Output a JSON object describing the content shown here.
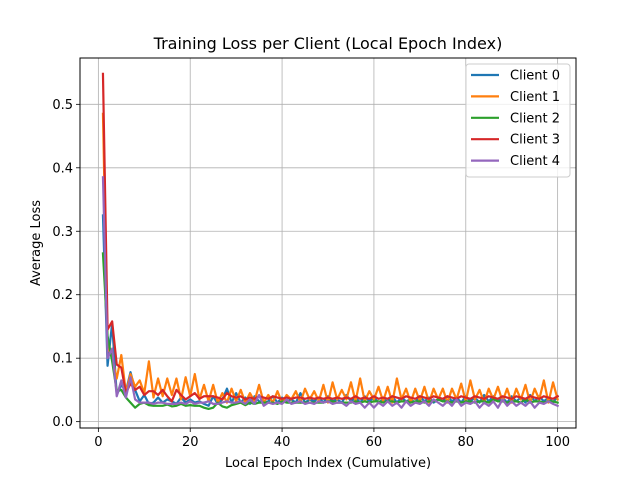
{
  "chart_data": {
    "type": "line",
    "title": "Training Loss per Client (Local Epoch Index)",
    "xlabel": "Local Epoch Index (Cumulative)",
    "ylabel": "Average Loss",
    "xlim": [
      -4,
      104
    ],
    "ylim": [
      -0.01,
      0.573
    ],
    "xticks": [
      0,
      20,
      40,
      60,
      80,
      100
    ],
    "yticks": [
      0.0,
      0.1,
      0.2,
      0.3,
      0.4,
      0.5
    ],
    "xtick_labels": [
      "0",
      "20",
      "40",
      "60",
      "80",
      "100"
    ],
    "ytick_labels": [
      "0.0",
      "0.1",
      "0.2",
      "0.3",
      "0.4",
      "0.5"
    ],
    "grid": true,
    "legend_position": "top-right",
    "series": [
      {
        "name": "Client 0",
        "color": "#1f77b4",
        "x": [
          1,
          2,
          3,
          4,
          5,
          6,
          7,
          8,
          9,
          10,
          11,
          12,
          13,
          14,
          15,
          16,
          17,
          18,
          19,
          20,
          21,
          22,
          23,
          24,
          25,
          26,
          27,
          28,
          29,
          30,
          31,
          32,
          33,
          34,
          35,
          36,
          37,
          38,
          39,
          40,
          41,
          42,
          43,
          44,
          45,
          46,
          47,
          48,
          49,
          50,
          51,
          52,
          53,
          54,
          55,
          56,
          57,
          58,
          59,
          60,
          61,
          62,
          63,
          64,
          65,
          66,
          67,
          68,
          69,
          70,
          71,
          72,
          73,
          74,
          75,
          76,
          77,
          78,
          79,
          80,
          81,
          82,
          83,
          84,
          85,
          86,
          87,
          88,
          89,
          90,
          91,
          92,
          93,
          94,
          95,
          96,
          97,
          98,
          99,
          100
        ],
        "values": [
          0.325,
          0.088,
          0.155,
          0.042,
          0.058,
          0.048,
          0.078,
          0.05,
          0.032,
          0.042,
          0.028,
          0.03,
          0.038,
          0.03,
          0.035,
          0.032,
          0.028,
          0.038,
          0.03,
          0.035,
          0.03,
          0.032,
          0.028,
          0.025,
          0.04,
          0.028,
          0.035,
          0.052,
          0.03,
          0.045,
          0.03,
          0.038,
          0.028,
          0.04,
          0.032,
          0.03,
          0.032,
          0.04,
          0.03,
          0.038,
          0.032,
          0.035,
          0.03,
          0.045,
          0.03,
          0.035,
          0.032,
          0.038,
          0.03,
          0.04,
          0.032,
          0.035,
          0.03,
          0.042,
          0.032,
          0.038,
          0.03,
          0.04,
          0.032,
          0.038,
          0.03,
          0.035,
          0.032,
          0.04,
          0.03,
          0.038,
          0.032,
          0.035,
          0.03,
          0.04,
          0.032,
          0.038,
          0.03,
          0.035,
          0.032,
          0.04,
          0.032,
          0.038,
          0.03,
          0.04,
          0.032,
          0.038,
          0.03,
          0.042,
          0.032,
          0.04,
          0.032,
          0.038,
          0.03,
          0.04,
          0.032,
          0.038,
          0.03,
          0.042,
          0.032,
          0.04,
          0.032,
          0.038,
          0.03,
          0.04
        ]
      },
      {
        "name": "Client 1",
        "color": "#ff7f0e",
        "x": [
          1,
          2,
          3,
          4,
          5,
          6,
          7,
          8,
          9,
          10,
          11,
          12,
          13,
          14,
          15,
          16,
          17,
          18,
          19,
          20,
          21,
          22,
          23,
          24,
          25,
          26,
          27,
          28,
          29,
          30,
          31,
          32,
          33,
          34,
          35,
          36,
          37,
          38,
          39,
          40,
          41,
          42,
          43,
          44,
          45,
          46,
          47,
          48,
          49,
          50,
          51,
          52,
          53,
          54,
          55,
          56,
          57,
          58,
          59,
          60,
          61,
          62,
          63,
          64,
          65,
          66,
          67,
          68,
          69,
          70,
          71,
          72,
          73,
          74,
          75,
          76,
          77,
          78,
          79,
          80,
          81,
          82,
          83,
          84,
          85,
          86,
          87,
          88,
          89,
          90,
          91,
          92,
          93,
          94,
          95,
          96,
          97,
          98,
          99,
          100
        ],
        "values": [
          0.485,
          0.12,
          0.1,
          0.068,
          0.105,
          0.045,
          0.075,
          0.055,
          0.065,
          0.045,
          0.095,
          0.038,
          0.068,
          0.04,
          0.068,
          0.042,
          0.068,
          0.035,
          0.07,
          0.04,
          0.075,
          0.035,
          0.058,
          0.032,
          0.058,
          0.03,
          0.045,
          0.03,
          0.052,
          0.032,
          0.05,
          0.03,
          0.045,
          0.032,
          0.058,
          0.03,
          0.042,
          0.03,
          0.048,
          0.03,
          0.042,
          0.035,
          0.048,
          0.03,
          0.052,
          0.035,
          0.048,
          0.032,
          0.058,
          0.03,
          0.062,
          0.035,
          0.05,
          0.035,
          0.062,
          0.032,
          0.068,
          0.032,
          0.048,
          0.035,
          0.055,
          0.032,
          0.055,
          0.03,
          0.068,
          0.035,
          0.052,
          0.03,
          0.052,
          0.032,
          0.055,
          0.03,
          0.052,
          0.035,
          0.052,
          0.03,
          0.052,
          0.035,
          0.06,
          0.032,
          0.065,
          0.035,
          0.05,
          0.03,
          0.052,
          0.035,
          0.055,
          0.032,
          0.052,
          0.03,
          0.052,
          0.035,
          0.058,
          0.03,
          0.052,
          0.035,
          0.065,
          0.03,
          0.062,
          0.035
        ]
      },
      {
        "name": "Client 2",
        "color": "#2ca02c",
        "x": [
          1,
          2,
          3,
          4,
          5,
          6,
          7,
          8,
          9,
          10,
          11,
          12,
          13,
          14,
          15,
          16,
          17,
          18,
          19,
          20,
          21,
          22,
          23,
          24,
          25,
          26,
          27,
          28,
          29,
          30,
          31,
          32,
          33,
          34,
          35,
          36,
          37,
          38,
          39,
          40,
          41,
          42,
          43,
          44,
          45,
          46,
          47,
          48,
          49,
          50,
          51,
          52,
          53,
          54,
          55,
          56,
          57,
          58,
          59,
          60,
          61,
          62,
          63,
          64,
          65,
          66,
          67,
          68,
          69,
          70,
          71,
          72,
          73,
          74,
          75,
          76,
          77,
          78,
          79,
          80,
          81,
          82,
          83,
          84,
          85,
          86,
          87,
          88,
          89,
          90,
          91,
          92,
          93,
          94,
          95,
          96,
          97,
          98,
          99,
          100
        ],
        "values": [
          0.265,
          0.135,
          0.095,
          0.048,
          0.05,
          0.038,
          0.03,
          0.022,
          0.028,
          0.03,
          0.026,
          0.025,
          0.025,
          0.025,
          0.027,
          0.024,
          0.025,
          0.028,
          0.025,
          0.026,
          0.025,
          0.025,
          0.022,
          0.02,
          0.022,
          0.03,
          0.024,
          0.022,
          0.026,
          0.028,
          0.03,
          0.026,
          0.03,
          0.028,
          0.03,
          0.03,
          0.03,
          0.03,
          0.028,
          0.032,
          0.03,
          0.03,
          0.03,
          0.03,
          0.03,
          0.03,
          0.03,
          0.03,
          0.03,
          0.032,
          0.032,
          0.03,
          0.03,
          0.03,
          0.03,
          0.032,
          0.03,
          0.032,
          0.03,
          0.032,
          0.032,
          0.03,
          0.032,
          0.032,
          0.03,
          0.032,
          0.032,
          0.03,
          0.032,
          0.032,
          0.03,
          0.032,
          0.032,
          0.035,
          0.032,
          0.032,
          0.03,
          0.032,
          0.03,
          0.032,
          0.032,
          0.03,
          0.032,
          0.032,
          0.03,
          0.035,
          0.032,
          0.032,
          0.03,
          0.032,
          0.032,
          0.03,
          0.035,
          0.03,
          0.032,
          0.032,
          0.03,
          0.032,
          0.032,
          0.03
        ]
      },
      {
        "name": "Client 3",
        "color": "#d62728",
        "x": [
          1,
          2,
          3,
          4,
          5,
          6,
          7,
          8,
          9,
          10,
          11,
          12,
          13,
          14,
          15,
          16,
          17,
          18,
          19,
          20,
          21,
          22,
          23,
          24,
          25,
          26,
          27,
          28,
          29,
          30,
          31,
          32,
          33,
          34,
          35,
          36,
          37,
          38,
          39,
          40,
          41,
          42,
          43,
          44,
          45,
          46,
          47,
          48,
          49,
          50,
          51,
          52,
          53,
          54,
          55,
          56,
          57,
          58,
          59,
          60,
          61,
          62,
          63,
          64,
          65,
          66,
          67,
          68,
          69,
          70,
          71,
          72,
          73,
          74,
          75,
          76,
          77,
          78,
          79,
          80,
          81,
          82,
          83,
          84,
          85,
          86,
          87,
          88,
          89,
          90,
          91,
          92,
          93,
          94,
          95,
          96,
          97,
          98,
          99,
          100
        ],
        "values": [
          0.548,
          0.145,
          0.158,
          0.09,
          0.085,
          0.045,
          0.06,
          0.05,
          0.055,
          0.042,
          0.048,
          0.048,
          0.042,
          0.05,
          0.04,
          0.032,
          0.05,
          0.042,
          0.035,
          0.04,
          0.045,
          0.036,
          0.04,
          0.04,
          0.04,
          0.038,
          0.035,
          0.045,
          0.04,
          0.038,
          0.04,
          0.035,
          0.038,
          0.036,
          0.04,
          0.038,
          0.036,
          0.04,
          0.038,
          0.036,
          0.038,
          0.036,
          0.038,
          0.038,
          0.036,
          0.038,
          0.036,
          0.038,
          0.036,
          0.038,
          0.036,
          0.038,
          0.036,
          0.038,
          0.036,
          0.04,
          0.036,
          0.038,
          0.036,
          0.04,
          0.036,
          0.038,
          0.036,
          0.04,
          0.038,
          0.036,
          0.04,
          0.038,
          0.036,
          0.04,
          0.038,
          0.036,
          0.04,
          0.038,
          0.036,
          0.04,
          0.038,
          0.036,
          0.04,
          0.038,
          0.036,
          0.04,
          0.038,
          0.036,
          0.04,
          0.038,
          0.036,
          0.04,
          0.038,
          0.036,
          0.04,
          0.038,
          0.036,
          0.04,
          0.038,
          0.036,
          0.04,
          0.038,
          0.036,
          0.04
        ]
      },
      {
        "name": "Client 4",
        "color": "#9467bd",
        "x": [
          1,
          2,
          3,
          4,
          5,
          6,
          7,
          8,
          9,
          10,
          11,
          12,
          13,
          14,
          15,
          16,
          17,
          18,
          19,
          20,
          21,
          22,
          23,
          24,
          25,
          26,
          27,
          28,
          29,
          30,
          31,
          32,
          33,
          34,
          35,
          36,
          37,
          38,
          39,
          40,
          41,
          42,
          43,
          44,
          45,
          46,
          47,
          48,
          49,
          50,
          51,
          52,
          53,
          54,
          55,
          56,
          57,
          58,
          59,
          60,
          61,
          62,
          63,
          64,
          65,
          66,
          67,
          68,
          69,
          70,
          71,
          72,
          73,
          74,
          75,
          76,
          77,
          78,
          79,
          80,
          81,
          82,
          83,
          84,
          85,
          86,
          87,
          88,
          89,
          90,
          91,
          92,
          93,
          94,
          95,
          96,
          97,
          98,
          99,
          100
        ],
        "values": [
          0.385,
          0.1,
          0.115,
          0.04,
          0.065,
          0.038,
          0.07,
          0.035,
          0.03,
          0.03,
          0.03,
          0.028,
          0.03,
          0.03,
          0.028,
          0.028,
          0.028,
          0.03,
          0.028,
          0.032,
          0.028,
          0.03,
          0.03,
          0.032,
          0.028,
          0.028,
          0.03,
          0.032,
          0.03,
          0.03,
          0.032,
          0.028,
          0.035,
          0.028,
          0.042,
          0.025,
          0.03,
          0.028,
          0.03,
          0.028,
          0.035,
          0.028,
          0.03,
          0.032,
          0.028,
          0.03,
          0.028,
          0.032,
          0.03,
          0.032,
          0.028,
          0.03,
          0.03,
          0.025,
          0.032,
          0.028,
          0.03,
          0.022,
          0.03,
          0.022,
          0.03,
          0.025,
          0.032,
          0.025,
          0.03,
          0.022,
          0.032,
          0.025,
          0.03,
          0.028,
          0.032,
          0.025,
          0.035,
          0.03,
          0.025,
          0.032,
          0.025,
          0.035,
          0.025,
          0.03,
          0.028,
          0.032,
          0.022,
          0.03,
          0.025,
          0.032,
          0.022,
          0.035,
          0.025,
          0.032,
          0.025,
          0.03,
          0.025,
          0.032,
          0.022,
          0.03,
          0.028,
          0.032,
          0.028,
          0.025
        ]
      }
    ]
  }
}
